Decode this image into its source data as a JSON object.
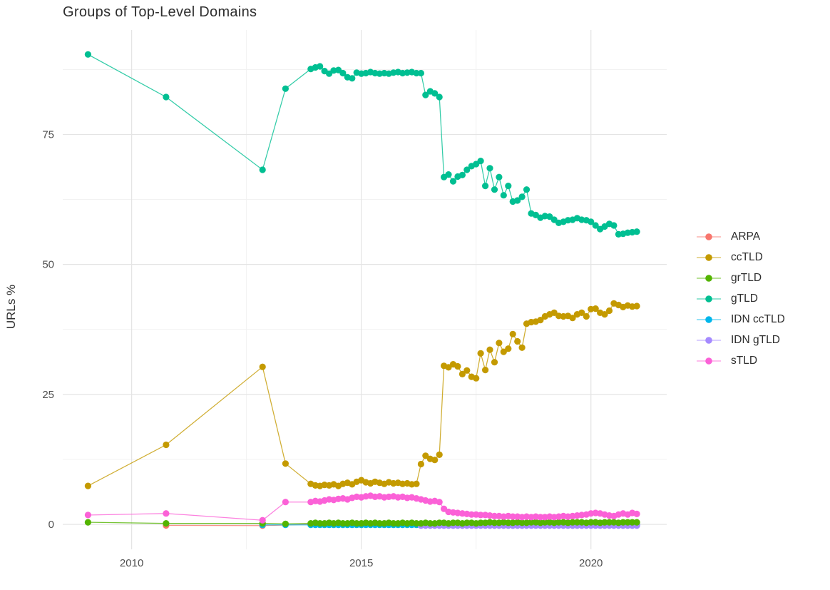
{
  "chart_data": {
    "type": "scatter",
    "title": "Groups of Top-Level Domains",
    "xlabel": "",
    "ylabel": "URLs %",
    "x_range": [
      2008.5,
      2021.65
    ],
    "y_range": [
      -4.8,
      95.1
    ],
    "x_ticks": [
      {
        "value": 2010,
        "label": "2010"
      },
      {
        "value": 2015,
        "label": "2015"
      },
      {
        "value": 2020,
        "label": "2020"
      }
    ],
    "y_ticks": [
      {
        "value": 0,
        "label": "0"
      },
      {
        "value": 25,
        "label": "25"
      },
      {
        "value": 50,
        "label": "50"
      },
      {
        "value": 75,
        "label": "75"
      }
    ],
    "minor_x": [
      2012.5,
      2017.5
    ],
    "minor_y": [
      12.5,
      37.5,
      62.5,
      87.5
    ],
    "grid": "on",
    "legend_position": "right",
    "legend_order": [
      "ARPA",
      "ccTLD",
      "grTLD",
      "gTLD",
      "IDN ccTLD",
      "IDN gTLD",
      "sTLD"
    ],
    "series": [
      {
        "name": "ARPA",
        "color": "#F8766D",
        "points": [
          [
            2010.75,
            -0.2
          ],
          [
            2012.85,
            -0.25
          ]
        ],
        "dense": {
          "x0": 2013.9,
          "dx": 0.1,
          "n": 72,
          "const": 0.0
        }
      },
      {
        "name": "IDN ccTLD",
        "color": "#00B6EB",
        "points": [
          [
            2012.85,
            -0.1
          ],
          [
            2013.35,
            -0.1
          ]
        ],
        "dense": {
          "x0": 2013.9,
          "dx": 0.1,
          "n": 72,
          "const": -0.1
        }
      },
      {
        "name": "IDN gTLD",
        "color": "#A58AFF",
        "points": [],
        "dense": {
          "x0": 2016.3,
          "dx": 0.1,
          "n": 48,
          "const": -0.25
        }
      },
      {
        "name": "grTLD",
        "color": "#53B400",
        "points": [
          [
            2009.05,
            0.4
          ],
          [
            2010.75,
            0.2
          ],
          [
            2012.85,
            0.2
          ],
          [
            2013.35,
            0.1
          ]
        ],
        "dense": {
          "x0": 2013.9,
          "dx": 0.1,
          "n": 72,
          "y": [
            0.2,
            0.3,
            0.2,
            0.2,
            0.3,
            0.2,
            0.3,
            0.2,
            0.2,
            0.3,
            0.2,
            0.2,
            0.3,
            0.2,
            0.3,
            0.2,
            0.2,
            0.3,
            0.2,
            0.2,
            0.3,
            0.2,
            0.3,
            0.2,
            0.2,
            0.3,
            0.2,
            0.2,
            0.3,
            0.3,
            0.2,
            0.3,
            0.3,
            0.2,
            0.3,
            0.3,
            0.2,
            0.3,
            0.3,
            0.4,
            0.3,
            0.3,
            0.4,
            0.3,
            0.3,
            0.4,
            0.3,
            0.3,
            0.4,
            0.4,
            0.3,
            0.4,
            0.4,
            0.3,
            0.4,
            0.4,
            0.3,
            0.4,
            0.4,
            0.4,
            0.3,
            0.4,
            0.4,
            0.3,
            0.4,
            0.4,
            0.4,
            0.3,
            0.4,
            0.4,
            0.4,
            0.4
          ]
        }
      },
      {
        "name": "gTLD",
        "color": "#00BF92",
        "points": [
          [
            2009.05,
            90.4
          ],
          [
            2010.75,
            82.2
          ],
          [
            2012.85,
            68.2
          ],
          [
            2013.35,
            83.8
          ]
        ],
        "dense": {
          "x0": 2013.9,
          "dx": 0.1,
          "n": 72,
          "y": [
            87.6,
            87.9,
            88.1,
            87.2,
            86.7,
            87.3,
            87.4,
            86.8,
            86.0,
            85.8,
            86.9,
            86.7,
            86.8,
            87.0,
            86.8,
            86.7,
            86.8,
            86.7,
            86.9,
            87.0,
            86.8,
            86.9,
            87.0,
            86.8,
            86.8,
            82.6,
            83.3,
            82.9,
            82.2,
            66.8,
            67.3,
            66.0,
            66.9,
            67.2,
            68.2,
            68.9,
            69.3,
            69.9,
            65.1,
            68.5,
            64.4,
            66.8,
            63.3,
            65.1,
            62.1,
            62.3,
            63.0,
            64.4,
            59.8,
            59.5,
            59.0,
            59.3,
            59.2,
            58.6,
            58.0,
            58.2,
            58.5,
            58.6,
            58.9,
            58.6,
            58.5,
            58.2,
            57.5,
            56.8,
            57.3,
            57.8,
            57.5,
            55.8,
            55.9,
            56.1,
            56.2,
            56.3
          ]
        }
      },
      {
        "name": "ccTLD",
        "color": "#C49A00",
        "points": [
          [
            2009.05,
            7.4
          ],
          [
            2010.75,
            15.3
          ],
          [
            2012.85,
            30.3
          ],
          [
            2013.35,
            11.7
          ]
        ],
        "dense": {
          "x0": 2013.9,
          "dx": 0.1,
          "n": 72,
          "y": [
            7.8,
            7.5,
            7.4,
            7.6,
            7.5,
            7.7,
            7.4,
            7.8,
            8.0,
            7.7,
            8.2,
            8.5,
            8.1,
            7.9,
            8.2,
            8.0,
            7.8,
            8.1,
            7.9,
            8.0,
            7.8,
            7.9,
            7.7,
            7.8,
            11.6,
            13.2,
            12.6,
            12.4,
            13.4,
            30.5,
            30.2,
            30.8,
            30.4,
            28.9,
            29.6,
            28.4,
            28.1,
            32.9,
            29.7,
            33.6,
            31.2,
            34.9,
            33.2,
            33.8,
            36.6,
            35.2,
            34.0,
            38.6,
            38.9,
            39.0,
            39.3,
            40.0,
            40.4,
            40.7,
            40.1,
            40.0,
            40.1,
            39.7,
            40.4,
            40.7,
            40.0,
            41.4,
            41.5,
            40.7,
            40.4,
            41.1,
            42.5,
            42.2,
            41.8,
            42.1,
            41.9,
            42.0
          ]
        }
      },
      {
        "name": "sTLD",
        "color": "#FB61D7",
        "points": [
          [
            2009.05,
            1.8
          ],
          [
            2010.75,
            2.1
          ],
          [
            2012.85,
            0.8
          ],
          [
            2013.35,
            4.3
          ]
        ],
        "dense": {
          "x0": 2013.9,
          "dx": 0.1,
          "n": 72,
          "y": [
            4.3,
            4.5,
            4.4,
            4.6,
            4.8,
            4.7,
            4.9,
            5.0,
            4.8,
            5.1,
            5.3,
            5.2,
            5.4,
            5.5,
            5.3,
            5.4,
            5.2,
            5.3,
            5.4,
            5.2,
            5.3,
            5.1,
            5.2,
            5.0,
            4.8,
            4.6,
            4.4,
            4.5,
            4.3,
            3.0,
            2.4,
            2.3,
            2.2,
            2.1,
            2.0,
            1.9,
            1.9,
            1.8,
            1.8,
            1.7,
            1.6,
            1.6,
            1.5,
            1.6,
            1.5,
            1.5,
            1.4,
            1.5,
            1.4,
            1.5,
            1.4,
            1.4,
            1.5,
            1.4,
            1.5,
            1.6,
            1.5,
            1.6,
            1.7,
            1.8,
            1.9,
            2.1,
            2.2,
            2.1,
            1.9,
            1.7,
            1.6,
            1.9,
            2.1,
            1.9,
            2.2,
            2.0
          ]
        }
      }
    ],
    "style": {
      "grid_major_color": "#e4e4e4",
      "grid_minor_color": "#f1f1f1",
      "axis_text_color": "#4f4f4f",
      "title_color": "#2e2e2e",
      "background": "#ffffff"
    }
  }
}
